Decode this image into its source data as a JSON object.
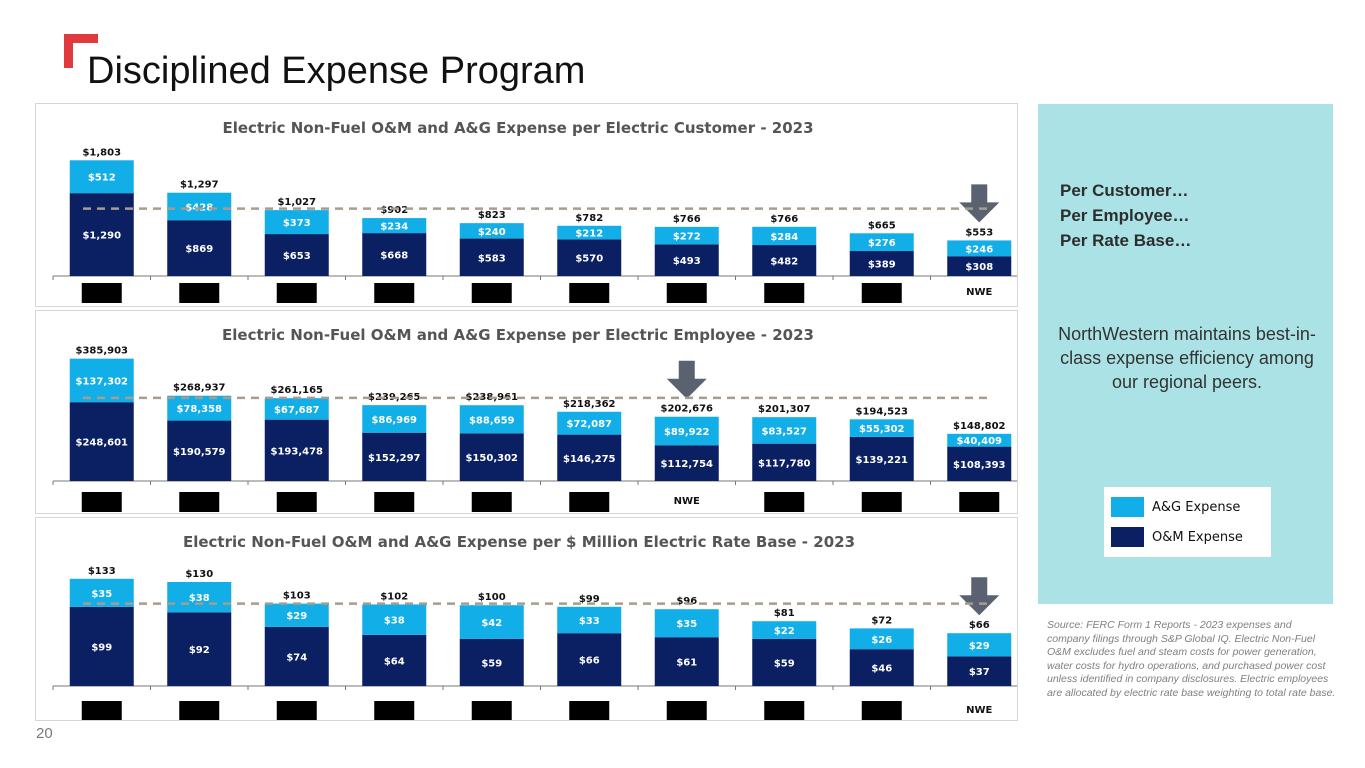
{
  "slide": {
    "title": "Disciplined Expense Program",
    "page_number": "20",
    "colors": {
      "accent": "#e03a3e",
      "ag": "#12aee8",
      "om": "#0b1f63",
      "side_bg": "#abe2e5",
      "arrow": "#5a6170"
    }
  },
  "sidebar": {
    "headline": [
      "Per Customer…",
      "Per Employee…",
      "Per Rate Base…"
    ],
    "message": "NorthWestern maintains best-in-class expense efficiency among our regional peers.",
    "legend": [
      {
        "label": "A&G Expense",
        "color": "#12aee8"
      },
      {
        "label": "O&M Expense",
        "color": "#0b1f63"
      }
    ]
  },
  "source_note": "Source:  FERC Form 1 Reports - 2023 expenses and company filings through S&P Global IQ. Electric Non-Fuel O&M excludes fuel and steam costs for power generation, water costs for hydro operations, and purchased power cost unless identified in company disclosures. Electric employees are allocated by electric rate base weighting to total rate base.",
  "chart_data": [
    {
      "type": "bar",
      "stacked": true,
      "title": "Electric Non-Fuel O&M and A&G Expense per Electric Customer - 2023",
      "categories": [
        "",
        "",
        "",
        "",
        "",
        "",
        "",
        "",
        "",
        "NWE"
      ],
      "series": [
        {
          "name": "O&M Expense",
          "values": [
            1290,
            869,
            653,
            668,
            583,
            570,
            493,
            482,
            389,
            308
          ],
          "labels": [
            "$1,290",
            "$869",
            "$653",
            "$668",
            "$583",
            "$570",
            "$493",
            "$482",
            "$389",
            "$308"
          ]
        },
        {
          "name": "A&G Expense",
          "values": [
            512,
            428,
            373,
            234,
            240,
            212,
            272,
            284,
            276,
            246
          ],
          "labels": [
            "$512",
            "$428",
            "$373",
            "$234",
            "$240",
            "$212",
            "$272",
            "$284",
            "$276",
            "$246"
          ]
        }
      ],
      "totals": [
        "$1,803",
        "$1,297",
        "$1,027",
        "$902",
        "$823",
        "$782",
        "$766",
        "$766",
        "$665",
        "$553"
      ],
      "reference_value": 1050,
      "nwe_index": 9,
      "ylim": [
        0,
        1900
      ]
    },
    {
      "type": "bar",
      "stacked": true,
      "title": "Electric Non-Fuel O&M and A&G Expense per Electric Employee - 2023",
      "categories": [
        "",
        "",
        "",
        "",
        "",
        "",
        "NWE",
        "",
        "",
        ""
      ],
      "series": [
        {
          "name": "O&M Expense",
          "values": [
            248601,
            190579,
            193478,
            152297,
            150302,
            146275,
            112754,
            117780,
            139221,
            108393
          ],
          "labels": [
            "$248,601",
            "$190,579",
            "$193,478",
            "$152,297",
            "$150,302",
            "$146,275",
            "$112,754",
            "$117,780",
            "$139,221",
            "$108,393"
          ]
        },
        {
          "name": "A&G Expense",
          "values": [
            137302,
            78358,
            67687,
            86969,
            88659,
            72087,
            89922,
            83527,
            55302,
            40409
          ],
          "labels": [
            "$137,302",
            "$78,358",
            "$67,687",
            "$86,969",
            "$88,659",
            "$72,087",
            "$89,922",
            "$83,527",
            "$55,302",
            "$40,409"
          ]
        }
      ],
      "totals": [
        "$385,903",
        "$268,937",
        "$261,165",
        "$239,265",
        "$238,961",
        "$218,362",
        "$202,676",
        "$201,307",
        "$194,523",
        "$148,802"
      ],
      "reference_value": 262000,
      "nwe_index": 6,
      "ylim": [
        0,
        410000
      ]
    },
    {
      "type": "bar",
      "stacked": true,
      "title": "Electric Non-Fuel O&M and A&G Expense per $ Million Electric Rate Base - 2023",
      "categories": [
        "",
        "",
        "",
        "",
        "",
        "",
        "",
        "",
        "",
        "NWE"
      ],
      "series": [
        {
          "name": "O&M Expense",
          "values": [
            99,
            92,
            74,
            64,
            59,
            66,
            61,
            59,
            46,
            37
          ],
          "labels": [
            "$99",
            "$92",
            "$74",
            "$64",
            "$59",
            "$66",
            "$61",
            "$59",
            "$46",
            "$37"
          ]
        },
        {
          "name": "A&G Expense",
          "values": [
            35,
            38,
            29,
            38,
            42,
            33,
            35,
            22,
            26,
            29
          ],
          "labels": [
            "$35",
            "$38",
            "$29",
            "$38",
            "$42",
            "$33",
            "$35",
            "$22",
            "$26",
            "$29"
          ]
        }
      ],
      "totals": [
        "$133",
        "$130",
        "$103",
        "$102",
        "$100",
        "$99",
        "$96",
        "$81",
        "$72",
        "$66"
      ],
      "reference_value": 103,
      "nwe_index": 9,
      "ylim": [
        0,
        145
      ]
    }
  ]
}
